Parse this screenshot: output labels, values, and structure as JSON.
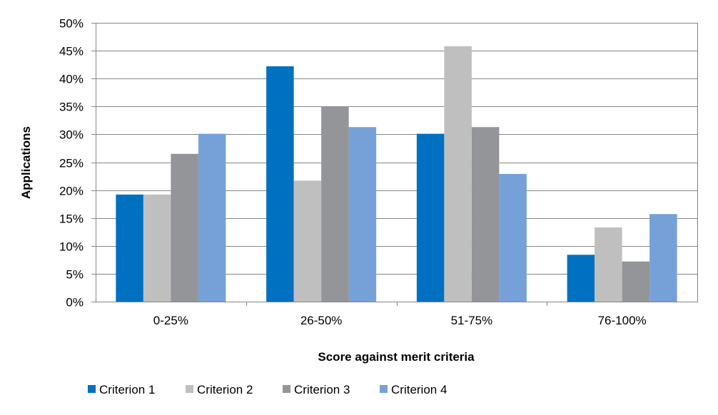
{
  "chart_data": {
    "type": "bar",
    "title": "",
    "xlabel": "Score against merit criteria",
    "ylabel": "Applications",
    "categories": [
      "0-25%",
      "26-50%",
      "51-75%",
      "76-100%"
    ],
    "ylim": [
      0,
      50
    ],
    "yticks": [
      "0%",
      "5%",
      "10%",
      "15%",
      "20%",
      "25%",
      "30%",
      "35%",
      "40%",
      "45%",
      "50%"
    ],
    "ytick_values": [
      0,
      5,
      10,
      15,
      20,
      25,
      30,
      35,
      40,
      45,
      50
    ],
    "grid": true,
    "legend_position": "bottom-left",
    "series": [
      {
        "name": "Criterion 1",
        "color": "#0070C0",
        "values": [
          19.2,
          42.2,
          30.1,
          8.4
        ]
      },
      {
        "name": "Criterion 2",
        "color": "#BFBFBF",
        "values": [
          19.2,
          21.7,
          45.8,
          13.3
        ]
      },
      {
        "name": "Criterion 3",
        "color": "#939598",
        "values": [
          26.5,
          35.0,
          31.3,
          7.2
        ]
      },
      {
        "name": "Criterion 4",
        "color": "#76A1D8",
        "values": [
          30.1,
          31.3,
          22.9,
          15.7
        ]
      }
    ]
  }
}
